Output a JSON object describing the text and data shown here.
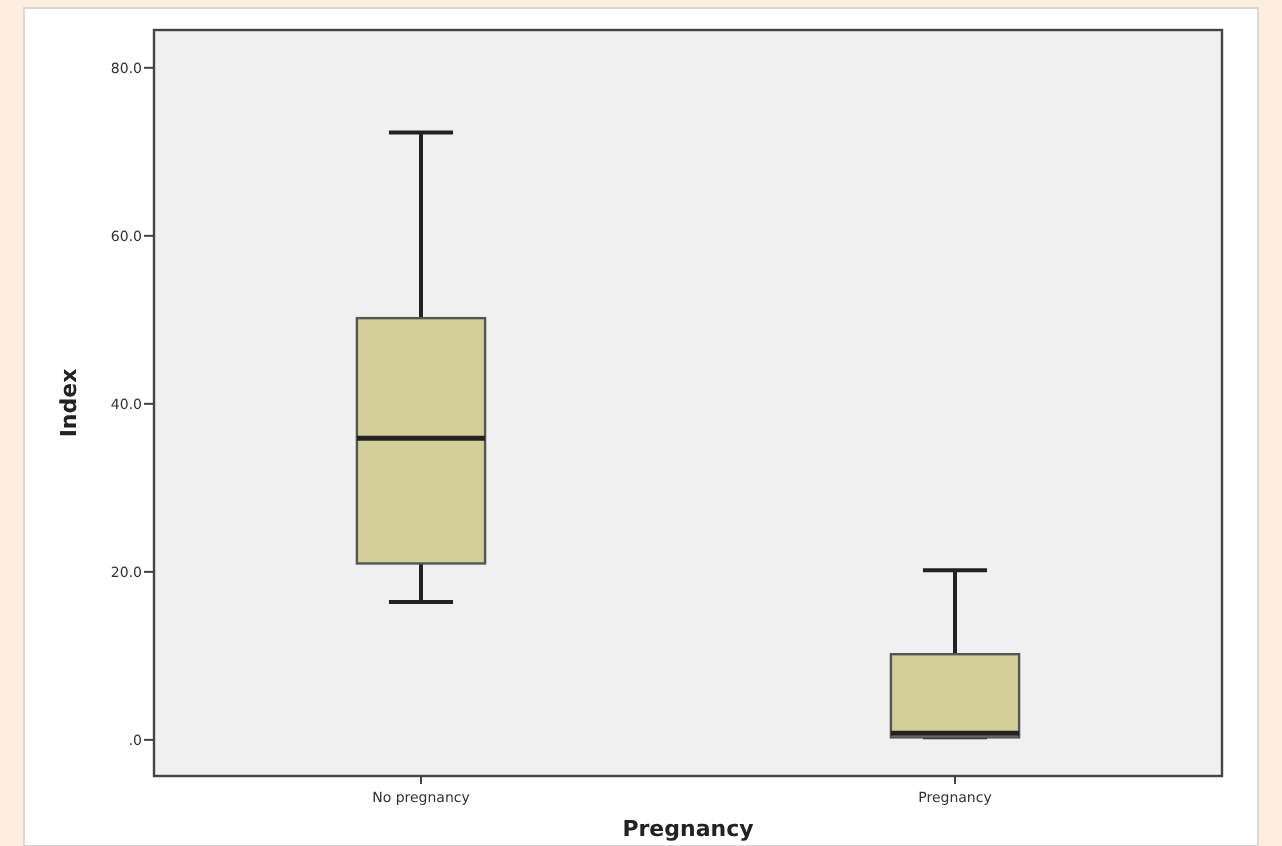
{
  "chart_data": {
    "type": "box",
    "xlabel": "Pregnancy",
    "ylabel": "Index",
    "categories": [
      "No pregnancy",
      "Pregnancy"
    ],
    "color": "#d3cf98",
    "ylim": [
      -4.3,
      84.5
    ],
    "yticks": [
      {
        "value": 0,
        "label": ".0"
      },
      {
        "value": 20,
        "label": "20.0"
      },
      {
        "value": 40,
        "label": "40.0"
      },
      {
        "value": 60,
        "label": "60.0"
      },
      {
        "value": 80,
        "label": "80.0"
      }
    ],
    "grid": false,
    "boxes": [
      {
        "low": 16.4,
        "q1": 21.0,
        "median": 35.9,
        "q3": 50.2,
        "high": 72.3
      },
      {
        "low": 0.3,
        "q1": 0.3,
        "median": 0.8,
        "q3": 10.2,
        "high": 20.2
      }
    ]
  }
}
